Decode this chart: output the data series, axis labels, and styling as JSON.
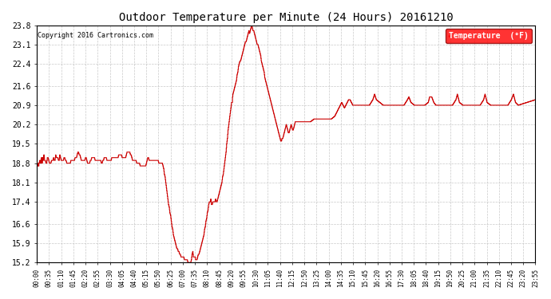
{
  "title": "Outdoor Temperature per Minute (24 Hours) 20161210",
  "copyright": "Copyright 2016 Cartronics.com",
  "legend_label": "Temperature  (°F)",
  "line_color": "#cc0000",
  "background_color": "#ffffff",
  "grid_color": "#bbbbbb",
  "ylim": [
    15.2,
    23.8
  ],
  "yticks": [
    15.2,
    15.9,
    16.6,
    17.4,
    18.1,
    18.8,
    19.5,
    20.2,
    20.9,
    21.6,
    22.4,
    23.1,
    23.8
  ],
  "x_tick_labels": [
    "00:00",
    "00:35",
    "01:10",
    "01:45",
    "02:20",
    "02:55",
    "03:30",
    "04:05",
    "04:40",
    "05:15",
    "05:50",
    "06:25",
    "07:00",
    "07:35",
    "08:10",
    "08:45",
    "09:20",
    "09:55",
    "10:30",
    "11:05",
    "11:40",
    "12:15",
    "12:50",
    "13:25",
    "14:00",
    "14:35",
    "15:10",
    "15:45",
    "16:20",
    "16:55",
    "17:30",
    "18:05",
    "18:40",
    "19:15",
    "19:50",
    "20:25",
    "21:00",
    "21:35",
    "22:10",
    "22:45",
    "23:20",
    "23:55"
  ],
  "key_points": [
    [
      0,
      18.7
    ],
    [
      3,
      18.7
    ],
    [
      4,
      18.8
    ],
    [
      5,
      18.7
    ],
    [
      6,
      18.8
    ],
    [
      8,
      18.9
    ],
    [
      9,
      18.8
    ],
    [
      10,
      18.9
    ],
    [
      11,
      18.8
    ],
    [
      12,
      18.9
    ],
    [
      13,
      19.0
    ],
    [
      14,
      18.9
    ],
    [
      15,
      18.8
    ],
    [
      16,
      19.0
    ],
    [
      17,
      19.0
    ],
    [
      18,
      18.9
    ],
    [
      20,
      19.1
    ],
    [
      21,
      19.0
    ],
    [
      22,
      18.9
    ],
    [
      24,
      18.9
    ],
    [
      26,
      18.8
    ],
    [
      28,
      18.8
    ],
    [
      30,
      19.0
    ],
    [
      32,
      19.0
    ],
    [
      34,
      18.9
    ],
    [
      36,
      18.8
    ],
    [
      38,
      18.8
    ],
    [
      40,
      18.8
    ],
    [
      42,
      18.9
    ],
    [
      44,
      18.9
    ],
    [
      46,
      18.9
    ],
    [
      48,
      19.0
    ],
    [
      50,
      18.9
    ],
    [
      52,
      18.9
    ],
    [
      54,
      19.1
    ],
    [
      56,
      19.0
    ],
    [
      58,
      19.0
    ],
    [
      60,
      19.0
    ],
    [
      62,
      18.9
    ],
    [
      64,
      18.9
    ],
    [
      66,
      19.1
    ],
    [
      68,
      19.0
    ],
    [
      70,
      18.9
    ],
    [
      72,
      18.9
    ],
    [
      74,
      18.9
    ],
    [
      76,
      18.9
    ],
    [
      78,
      19.0
    ],
    [
      80,
      19.0
    ],
    [
      82,
      18.9
    ],
    [
      84,
      18.9
    ],
    [
      86,
      18.8
    ],
    [
      88,
      18.8
    ],
    [
      90,
      18.8
    ],
    [
      92,
      18.8
    ],
    [
      94,
      18.8
    ],
    [
      96,
      18.8
    ],
    [
      98,
      18.9
    ],
    [
      100,
      18.9
    ],
    [
      102,
      18.9
    ],
    [
      104,
      18.9
    ],
    [
      106,
      18.9
    ],
    [
      108,
      18.9
    ],
    [
      110,
      19.0
    ],
    [
      112,
      19.0
    ],
    [
      114,
      19.0
    ],
    [
      116,
      19.1
    ],
    [
      118,
      19.2
    ],
    [
      120,
      19.2
    ],
    [
      122,
      19.1
    ],
    [
      124,
      19.1
    ],
    [
      126,
      19.0
    ],
    [
      128,
      18.9
    ],
    [
      130,
      18.9
    ],
    [
      132,
      18.9
    ],
    [
      134,
      18.9
    ],
    [
      136,
      18.9
    ],
    [
      138,
      18.9
    ],
    [
      140,
      19.0
    ],
    [
      142,
      19.0
    ],
    [
      144,
      18.9
    ],
    [
      146,
      18.8
    ],
    [
      148,
      18.8
    ],
    [
      150,
      18.8
    ],
    [
      152,
      18.8
    ],
    [
      154,
      18.9
    ],
    [
      156,
      18.9
    ],
    [
      158,
      19.0
    ],
    [
      160,
      19.0
    ],
    [
      162,
      19.0
    ],
    [
      164,
      19.0
    ],
    [
      166,
      19.0
    ],
    [
      168,
      18.9
    ],
    [
      170,
      18.9
    ],
    [
      172,
      18.9
    ],
    [
      174,
      18.9
    ],
    [
      176,
      18.9
    ],
    [
      178,
      18.9
    ],
    [
      180,
      18.9
    ],
    [
      182,
      18.9
    ],
    [
      184,
      18.9
    ],
    [
      186,
      18.8
    ],
    [
      188,
      18.8
    ],
    [
      190,
      18.9
    ],
    [
      192,
      18.9
    ],
    [
      194,
      19.0
    ],
    [
      196,
      19.0
    ],
    [
      198,
      19.0
    ],
    [
      200,
      19.0
    ],
    [
      202,
      18.9
    ],
    [
      204,
      18.9
    ],
    [
      206,
      18.9
    ],
    [
      208,
      18.9
    ],
    [
      210,
      18.9
    ],
    [
      212,
      18.9
    ],
    [
      214,
      18.9
    ],
    [
      216,
      19.0
    ],
    [
      218,
      19.0
    ],
    [
      220,
      19.0
    ],
    [
      222,
      19.0
    ],
    [
      224,
      19.0
    ],
    [
      226,
      19.0
    ],
    [
      228,
      19.0
    ],
    [
      230,
      19.0
    ],
    [
      232,
      19.0
    ],
    [
      234,
      19.0
    ],
    [
      236,
      19.1
    ],
    [
      238,
      19.1
    ],
    [
      240,
      19.1
    ],
    [
      242,
      19.1
    ],
    [
      244,
      19.1
    ],
    [
      246,
      19.0
    ],
    [
      248,
      19.0
    ],
    [
      250,
      19.0
    ],
    [
      252,
      19.0
    ],
    [
      254,
      19.0
    ],
    [
      256,
      19.0
    ],
    [
      258,
      19.1
    ],
    [
      260,
      19.2
    ],
    [
      262,
      19.2
    ],
    [
      264,
      19.2
    ],
    [
      266,
      19.2
    ],
    [
      268,
      19.2
    ],
    [
      270,
      19.1
    ],
    [
      272,
      19.1
    ],
    [
      274,
      19.0
    ],
    [
      276,
      18.9
    ],
    [
      278,
      18.9
    ],
    [
      280,
      18.9
    ],
    [
      282,
      18.9
    ],
    [
      284,
      18.9
    ],
    [
      286,
      18.9
    ],
    [
      288,
      18.8
    ],
    [
      290,
      18.8
    ],
    [
      292,
      18.8
    ],
    [
      294,
      18.8
    ],
    [
      296,
      18.8
    ],
    [
      298,
      18.7
    ],
    [
      300,
      18.7
    ],
    [
      302,
      18.7
    ],
    [
      304,
      18.7
    ],
    [
      306,
      18.7
    ],
    [
      308,
      18.7
    ],
    [
      310,
      18.7
    ],
    [
      312,
      18.7
    ],
    [
      314,
      18.7
    ],
    [
      316,
      18.8
    ],
    [
      318,
      18.9
    ],
    [
      320,
      19.0
    ],
    [
      322,
      19.0
    ],
    [
      324,
      18.9
    ],
    [
      326,
      18.9
    ],
    [
      328,
      18.9
    ],
    [
      330,
      18.9
    ],
    [
      332,
      18.9
    ],
    [
      334,
      18.9
    ],
    [
      336,
      18.9
    ],
    [
      338,
      18.9
    ],
    [
      340,
      18.9
    ],
    [
      342,
      18.9
    ],
    [
      344,
      18.9
    ],
    [
      346,
      18.9
    ],
    [
      348,
      18.9
    ],
    [
      350,
      18.9
    ],
    [
      352,
      18.8
    ],
    [
      354,
      18.8
    ],
    [
      356,
      18.8
    ],
    [
      358,
      18.8
    ],
    [
      360,
      18.8
    ],
    [
      362,
      18.8
    ],
    [
      364,
      18.7
    ],
    [
      366,
      18.6
    ],
    [
      368,
      18.4
    ],
    [
      370,
      18.3
    ],
    [
      372,
      18.1
    ],
    [
      374,
      17.9
    ],
    [
      376,
      17.7
    ],
    [
      378,
      17.5
    ],
    [
      380,
      17.3
    ],
    [
      382,
      17.2
    ],
    [
      384,
      17.0
    ],
    [
      386,
      16.9
    ],
    [
      388,
      16.7
    ],
    [
      390,
      16.5
    ],
    [
      392,
      16.4
    ],
    [
      394,
      16.2
    ],
    [
      396,
      16.1
    ],
    [
      398,
      16.0
    ],
    [
      400,
      15.9
    ],
    [
      402,
      15.8
    ],
    [
      404,
      15.7
    ],
    [
      406,
      15.7
    ],
    [
      408,
      15.6
    ],
    [
      410,
      15.6
    ],
    [
      412,
      15.5
    ],
    [
      414,
      15.5
    ],
    [
      416,
      15.4
    ],
    [
      418,
      15.4
    ],
    [
      420,
      15.4
    ],
    [
      422,
      15.4
    ],
    [
      424,
      15.4
    ],
    [
      426,
      15.3
    ],
    [
      428,
      15.3
    ],
    [
      430,
      15.3
    ],
    [
      432,
      15.3
    ],
    [
      434,
      15.3
    ],
    [
      436,
      15.2
    ],
    [
      438,
      15.2
    ],
    [
      440,
      15.2
    ],
    [
      442,
      15.2
    ],
    [
      444,
      15.2
    ],
    [
      446,
      15.3
    ],
    [
      448,
      15.5
    ],
    [
      450,
      15.6
    ],
    [
      451,
      15.5
    ],
    [
      452,
      15.4
    ],
    [
      453,
      15.4
    ],
    [
      454,
      15.4
    ],
    [
      455,
      15.4
    ],
    [
      456,
      15.4
    ],
    [
      457,
      15.4
    ],
    [
      458,
      15.3
    ],
    [
      460,
      15.3
    ],
    [
      462,
      15.3
    ],
    [
      464,
      15.4
    ],
    [
      466,
      15.5
    ],
    [
      468,
      15.5
    ],
    [
      470,
      15.6
    ],
    [
      472,
      15.7
    ],
    [
      474,
      15.8
    ],
    [
      476,
      15.9
    ],
    [
      478,
      16.0
    ],
    [
      480,
      16.1
    ],
    [
      482,
      16.2
    ],
    [
      484,
      16.4
    ],
    [
      486,
      16.5
    ],
    [
      488,
      16.7
    ],
    [
      490,
      16.8
    ],
    [
      492,
      17.0
    ],
    [
      494,
      17.1
    ],
    [
      496,
      17.3
    ],
    [
      498,
      17.4
    ],
    [
      500,
      17.4
    ],
    [
      501,
      17.4
    ],
    [
      502,
      17.5
    ],
    [
      503,
      17.4
    ],
    [
      504,
      17.3
    ],
    [
      505,
      17.3
    ],
    [
      506,
      17.3
    ],
    [
      508,
      17.4
    ],
    [
      510,
      17.4
    ],
    [
      512,
      17.4
    ],
    [
      514,
      17.4
    ],
    [
      516,
      17.5
    ],
    [
      518,
      17.4
    ],
    [
      520,
      17.4
    ],
    [
      522,
      17.5
    ],
    [
      524,
      17.6
    ],
    [
      526,
      17.7
    ],
    [
      528,
      17.8
    ],
    [
      530,
      17.9
    ],
    [
      532,
      18.0
    ],
    [
      534,
      18.1
    ],
    [
      536,
      18.3
    ],
    [
      538,
      18.4
    ],
    [
      540,
      18.6
    ],
    [
      542,
      18.8
    ],
    [
      544,
      19.0
    ],
    [
      546,
      19.2
    ],
    [
      548,
      19.5
    ],
    [
      550,
      19.7
    ],
    [
      552,
      20.0
    ],
    [
      554,
      20.2
    ],
    [
      556,
      20.4
    ],
    [
      558,
      20.6
    ],
    [
      560,
      20.8
    ],
    [
      562,
      21.0
    ],
    [
      564,
      21.0
    ],
    [
      565,
      21.2
    ],
    [
      566,
      21.3
    ],
    [
      568,
      21.4
    ],
    [
      570,
      21.5
    ],
    [
      572,
      21.6
    ],
    [
      574,
      21.7
    ],
    [
      576,
      21.8
    ],
    [
      578,
      22.0
    ],
    [
      580,
      22.1
    ],
    [
      582,
      22.3
    ],
    [
      584,
      22.4
    ],
    [
      586,
      22.5
    ],
    [
      588,
      22.5
    ],
    [
      590,
      22.6
    ],
    [
      592,
      22.7
    ],
    [
      594,
      22.8
    ],
    [
      596,
      22.9
    ],
    [
      598,
      23.0
    ],
    [
      600,
      23.1
    ],
    [
      602,
      23.2
    ],
    [
      604,
      23.2
    ],
    [
      606,
      23.3
    ],
    [
      608,
      23.4
    ],
    [
      610,
      23.5
    ],
    [
      612,
      23.6
    ],
    [
      614,
      23.5
    ],
    [
      616,
      23.6
    ],
    [
      618,
      23.7
    ],
    [
      620,
      23.8
    ],
    [
      622,
      23.7
    ],
    [
      624,
      23.6
    ],
    [
      626,
      23.6
    ],
    [
      628,
      23.5
    ],
    [
      630,
      23.4
    ],
    [
      632,
      23.3
    ],
    [
      634,
      23.2
    ],
    [
      636,
      23.1
    ],
    [
      638,
      23.1
    ],
    [
      640,
      23.0
    ],
    [
      642,
      22.9
    ],
    [
      644,
      22.8
    ],
    [
      646,
      22.7
    ],
    [
      648,
      22.5
    ],
    [
      650,
      22.4
    ],
    [
      652,
      22.3
    ],
    [
      654,
      22.2
    ],
    [
      656,
      22.1
    ],
    [
      658,
      21.9
    ],
    [
      660,
      21.8
    ],
    [
      662,
      21.7
    ],
    [
      664,
      21.6
    ],
    [
      666,
      21.5
    ],
    [
      668,
      21.4
    ],
    [
      670,
      21.3
    ],
    [
      672,
      21.2
    ],
    [
      674,
      21.1
    ],
    [
      676,
      21.0
    ],
    [
      678,
      20.9
    ],
    [
      680,
      20.8
    ],
    [
      682,
      20.7
    ],
    [
      684,
      20.6
    ],
    [
      686,
      20.5
    ],
    [
      688,
      20.4
    ],
    [
      690,
      20.3
    ],
    [
      692,
      20.2
    ],
    [
      694,
      20.1
    ],
    [
      696,
      20.0
    ],
    [
      698,
      19.9
    ],
    [
      700,
      19.8
    ],
    [
      702,
      19.7
    ],
    [
      704,
      19.6
    ],
    [
      706,
      19.6
    ],
    [
      708,
      19.7
    ],
    [
      710,
      19.7
    ],
    [
      712,
      19.8
    ],
    [
      714,
      19.9
    ],
    [
      716,
      20.0
    ],
    [
      718,
      20.1
    ],
    [
      720,
      20.2
    ],
    [
      722,
      20.1
    ],
    [
      724,
      20.0
    ],
    [
      726,
      19.9
    ],
    [
      728,
      19.9
    ],
    [
      730,
      20.0
    ],
    [
      732,
      20.1
    ],
    [
      734,
      20.2
    ],
    [
      736,
      20.1
    ],
    [
      738,
      20.0
    ],
    [
      740,
      20.0
    ],
    [
      742,
      20.1
    ],
    [
      744,
      20.2
    ],
    [
      746,
      20.3
    ],
    [
      748,
      20.3
    ],
    [
      750,
      20.3
    ],
    [
      760,
      20.3
    ],
    [
      770,
      20.3
    ],
    [
      780,
      20.3
    ],
    [
      790,
      20.3
    ],
    [
      800,
      20.4
    ],
    [
      810,
      20.4
    ],
    [
      820,
      20.4
    ],
    [
      830,
      20.4
    ],
    [
      840,
      20.4
    ],
    [
      850,
      20.4
    ],
    [
      860,
      20.5
    ],
    [
      864,
      20.6
    ],
    [
      868,
      20.7
    ],
    [
      872,
      20.8
    ],
    [
      876,
      20.9
    ],
    [
      880,
      21.0
    ],
    [
      884,
      20.9
    ],
    [
      888,
      20.8
    ],
    [
      892,
      20.9
    ],
    [
      896,
      21.0
    ],
    [
      900,
      21.1
    ],
    [
      904,
      21.1
    ],
    [
      908,
      21.0
    ],
    [
      912,
      20.9
    ],
    [
      920,
      20.9
    ],
    [
      940,
      20.9
    ],
    [
      960,
      20.9
    ],
    [
      970,
      21.1
    ],
    [
      975,
      21.3
    ],
    [
      980,
      21.1
    ],
    [
      990,
      21.0
    ],
    [
      1000,
      20.9
    ],
    [
      1060,
      20.9
    ],
    [
      1070,
      21.1
    ],
    [
      1074,
      21.2
    ],
    [
      1080,
      21.0
    ],
    [
      1090,
      20.9
    ],
    [
      1120,
      20.9
    ],
    [
      1130,
      21.0
    ],
    [
      1134,
      21.2
    ],
    [
      1140,
      21.2
    ],
    [
      1146,
      21.0
    ],
    [
      1152,
      20.9
    ],
    [
      1200,
      20.9
    ],
    [
      1210,
      21.1
    ],
    [
      1214,
      21.3
    ],
    [
      1220,
      21.0
    ],
    [
      1230,
      20.9
    ],
    [
      1280,
      20.9
    ],
    [
      1290,
      21.1
    ],
    [
      1294,
      21.3
    ],
    [
      1300,
      21.0
    ],
    [
      1310,
      20.9
    ],
    [
      1360,
      20.9
    ],
    [
      1370,
      21.1
    ],
    [
      1376,
      21.3
    ],
    [
      1382,
      21.0
    ],
    [
      1390,
      20.9
    ],
    [
      1440,
      21.1
    ]
  ]
}
